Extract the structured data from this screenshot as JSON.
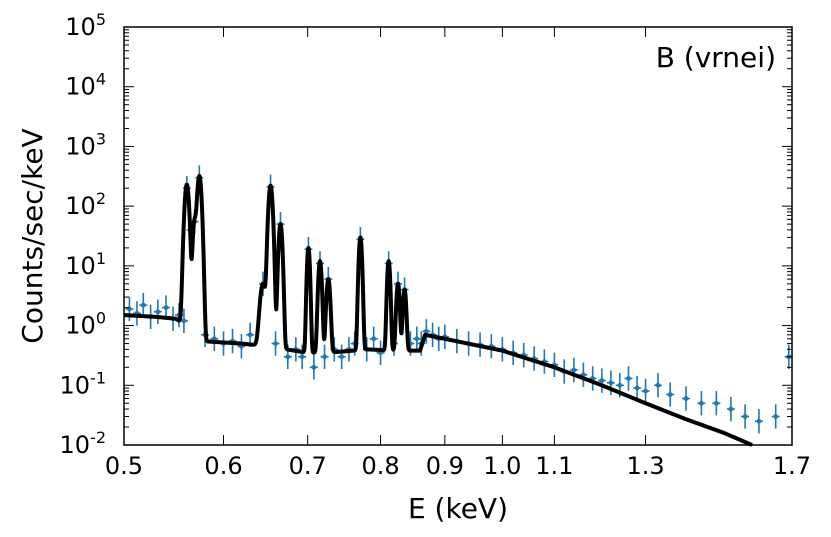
{
  "chart_data": {
    "type": "scatter",
    "title": "",
    "annotation": "B (vrnei)",
    "xlabel": "E (keV)",
    "ylabel": "Counts/sec/keV",
    "xscale": "log",
    "yscale": "log",
    "xlim": [
      0.5,
      1.7
    ],
    "ylim": [
      0.01,
      100000
    ],
    "xticks": [
      {
        "value": 0.5,
        "label": "0.5"
      },
      {
        "value": 0.6,
        "label": "0.6"
      },
      {
        "value": 0.7,
        "label": "0.7"
      },
      {
        "value": 0.8,
        "label": "0.8"
      },
      {
        "value": 0.9,
        "label": "0.9"
      },
      {
        "value": 1.0,
        "label": "1.0"
      },
      {
        "value": 1.1,
        "label": "1.1"
      },
      {
        "value": 1.3,
        "label": "1.3"
      },
      {
        "value": 1.7,
        "label": "1.7"
      }
    ],
    "yticks": [
      {
        "value": 0.01,
        "base": "10",
        "exp": "-2"
      },
      {
        "value": 0.1,
        "base": "10",
        "exp": "-1"
      },
      {
        "value": 1,
        "base": "10",
        "exp": "0"
      },
      {
        "value": 10,
        "base": "10",
        "exp": "1"
      },
      {
        "value": 100,
        "base": "10",
        "exp": "2"
      },
      {
        "value": 1000,
        "base": "10",
        "exp": "3"
      },
      {
        "value": 10000,
        "base": "10",
        "exp": "4"
      },
      {
        "value": 100000,
        "base": "10",
        "exp": "5"
      }
    ],
    "legend": "none",
    "grid": false,
    "colors": {
      "data": "#1f77b4",
      "model": "#000000"
    },
    "model_continuum": [
      [
        0.5,
        1.5
      ],
      [
        0.53,
        1.4
      ],
      [
        0.55,
        1.3
      ],
      [
        0.56,
        1.0
      ],
      [
        0.575,
        0.55
      ],
      [
        0.62,
        0.5
      ],
      [
        0.65,
        0.45
      ],
      [
        0.7,
        0.35
      ],
      [
        0.72,
        0.35
      ],
      [
        0.75,
        0.37
      ],
      [
        0.78,
        0.4
      ],
      [
        0.82,
        0.38
      ],
      [
        0.86,
        0.38
      ],
      [
        0.868,
        0.7
      ],
      [
        0.9,
        0.6
      ],
      [
        1.0,
        0.38
      ],
      [
        1.1,
        0.2
      ],
      [
        1.2,
        0.1
      ],
      [
        1.3,
        0.05
      ],
      [
        1.4,
        0.027
      ],
      [
        1.5,
        0.016
      ],
      [
        1.58,
        0.01
      ]
    ],
    "model_lines": [
      {
        "e": 0.561,
        "peak": 230,
        "width": 0.0018
      },
      {
        "e": 0.569,
        "peak": 55,
        "width": 0.0015
      },
      {
        "e": 0.574,
        "peak": 320,
        "width": 0.0018
      },
      {
        "e": 0.645,
        "peak": 5,
        "width": 0.0028
      },
      {
        "e": 0.654,
        "peak": 220,
        "width": 0.002
      },
      {
        "e": 0.666,
        "peak": 50,
        "width": 0.0018
      },
      {
        "e": 0.701,
        "peak": 20,
        "width": 0.0015
      },
      {
        "e": 0.716,
        "peak": 12,
        "width": 0.0018
      },
      {
        "e": 0.727,
        "peak": 6,
        "width": 0.002
      },
      {
        "e": 0.771,
        "peak": 30,
        "width": 0.0018
      },
      {
        "e": 0.812,
        "peak": 12,
        "width": 0.0018
      },
      {
        "e": 0.826,
        "peak": 5,
        "width": 0.002
      },
      {
        "e": 0.836,
        "peak": 4,
        "width": 0.002
      }
    ],
    "data_points": [
      [
        0.505,
        1.9
      ],
      [
        0.512,
        1.6
      ],
      [
        0.518,
        2.2
      ],
      [
        0.525,
        1.4
      ],
      [
        0.532,
        1.7
      ],
      [
        0.54,
        2.0
      ],
      [
        0.547,
        1.3
      ],
      [
        0.553,
        1.5
      ],
      [
        0.558,
        1.2
      ],
      [
        0.561,
        200
      ],
      [
        0.565,
        40
      ],
      [
        0.569,
        55
      ],
      [
        0.574,
        300
      ],
      [
        0.58,
        0.7
      ],
      [
        0.59,
        0.6
      ],
      [
        0.6,
        0.5
      ],
      [
        0.61,
        0.55
      ],
      [
        0.62,
        0.45
      ],
      [
        0.63,
        0.7
      ],
      [
        0.645,
        5
      ],
      [
        0.654,
        210
      ],
      [
        0.66,
        0.5
      ],
      [
        0.666,
        50
      ],
      [
        0.675,
        0.3
      ],
      [
        0.685,
        0.4
      ],
      [
        0.693,
        0.3
      ],
      [
        0.701,
        19
      ],
      [
        0.708,
        0.2
      ],
      [
        0.716,
        11
      ],
      [
        0.722,
        0.3
      ],
      [
        0.727,
        6
      ],
      [
        0.735,
        0.4
      ],
      [
        0.745,
        0.3
      ],
      [
        0.755,
        0.4
      ],
      [
        0.763,
        0.5
      ],
      [
        0.771,
        28
      ],
      [
        0.78,
        0.4
      ],
      [
        0.79,
        0.6
      ],
      [
        0.8,
        0.35
      ],
      [
        0.812,
        11
      ],
      [
        0.82,
        0.5
      ],
      [
        0.826,
        5
      ],
      [
        0.836,
        4
      ],
      [
        0.845,
        0.5
      ],
      [
        0.855,
        0.6
      ],
      [
        0.862,
        0.5
      ],
      [
        0.87,
        0.8
      ],
      [
        0.88,
        0.7
      ],
      [
        0.89,
        0.6
      ],
      [
        0.9,
        0.65
      ],
      [
        0.92,
        0.55
      ],
      [
        0.94,
        0.5
      ],
      [
        0.96,
        0.48
      ],
      [
        0.98,
        0.45
      ],
      [
        1.0,
        0.4
      ],
      [
        1.02,
        0.35
      ],
      [
        1.04,
        0.32
      ],
      [
        1.06,
        0.28
      ],
      [
        1.08,
        0.25
      ],
      [
        1.1,
        0.22
      ],
      [
        1.12,
        0.17
      ],
      [
        1.14,
        0.18
      ],
      [
        1.16,
        0.15
      ],
      [
        1.18,
        0.13
      ],
      [
        1.2,
        0.12
      ],
      [
        1.22,
        0.11
      ],
      [
        1.24,
        0.1
      ],
      [
        1.26,
        0.13
      ],
      [
        1.28,
        0.09
      ],
      [
        1.3,
        0.08
      ],
      [
        1.33,
        0.1
      ],
      [
        1.36,
        0.07
      ],
      [
        1.4,
        0.06
      ],
      [
        1.44,
        0.05
      ],
      [
        1.48,
        0.05
      ],
      [
        1.52,
        0.04
      ],
      [
        1.56,
        0.03
      ],
      [
        1.6,
        0.025
      ],
      [
        1.65,
        0.03
      ],
      [
        1.69,
        0.3
      ]
    ]
  }
}
